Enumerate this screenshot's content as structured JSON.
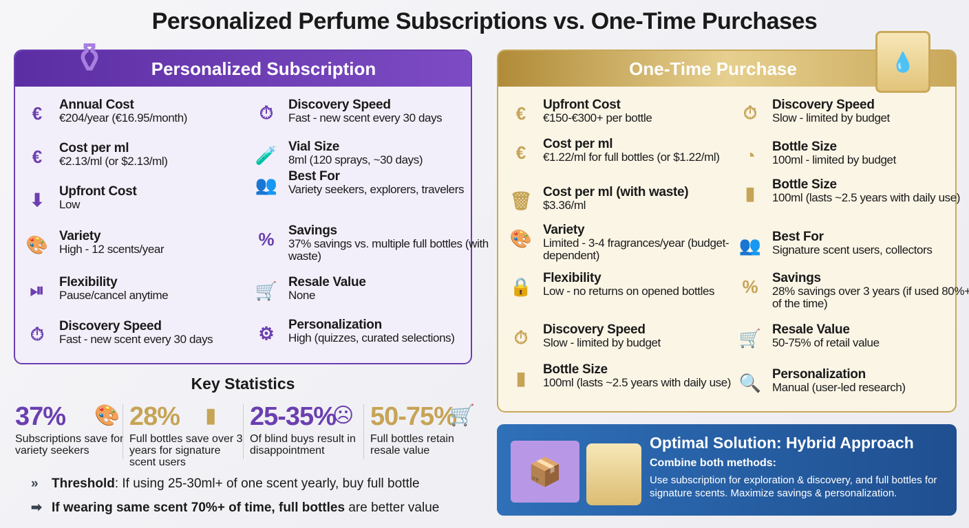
{
  "title": "Personalized Perfume Subscriptions vs. One-Time Purchases",
  "colors": {
    "purple": "#6b3fb0",
    "gold": "#c6a456",
    "blue": "#2f70b9"
  },
  "subscription": {
    "heading": "Personalized Subscription",
    "items": [
      {
        "title": "Annual Cost",
        "desc": "€204/year (€16.95/month)",
        "icon": "money-bag-icon"
      },
      {
        "title": "Cost per ml",
        "desc": "€2.13/ml (or $2.13/ml)",
        "icon": "drop-euro-icon"
      },
      {
        "title": "Upfront Cost",
        "desc": "Low",
        "icon": "down-arrow-euro-icon"
      },
      {
        "title": "Variety",
        "desc": "High - 12 scents/year",
        "icon": "palette-icon"
      },
      {
        "title": "Flexibility",
        "desc": "Pause/cancel anytime",
        "icon": "pause-play-icon"
      },
      {
        "title": "Discovery Speed",
        "desc": "Fast - new scent every 30 days",
        "icon": "stopwatch-calendar-icon"
      },
      {
        "title": "Discovery Speed",
        "desc": "Fast - new scent every 30 days",
        "icon": "stopwatch-calendar-icon"
      },
      {
        "title": "Vial Size",
        "desc": "8ml (120 sprays, ~30 days)",
        "icon": "vial-icon"
      },
      {
        "title": "Best For",
        "desc": "Variety seekers, explorers, travelers",
        "icon": "people-icon"
      },
      {
        "title": "Savings",
        "desc": "37% savings vs. multiple full bottles (with waste)",
        "icon": "percent-badge-icon"
      },
      {
        "title": "Resale Value",
        "desc": "None",
        "icon": "cart-blocked-icon"
      },
      {
        "title": "Personalization",
        "desc": "High (quizzes, curated selections)",
        "icon": "user-gear-icon"
      }
    ]
  },
  "onetime": {
    "heading": "One-Time Purchase",
    "items": [
      {
        "title": "Upfront Cost",
        "desc": "€150-€300+ per bottle",
        "icon": "money-bag-icon"
      },
      {
        "title": "Cost per ml",
        "desc": "€1.22/ml for full bottles (or $1.22/ml)",
        "icon": "drop-euro-icon"
      },
      {
        "title": "Cost per ml (with waste)",
        "desc": "$3.36/ml",
        "icon": "drop-trash-icon"
      },
      {
        "title": "Variety",
        "desc": "Limited - 3-4 fragrances/year (budget-dependent)",
        "icon": "palette-icon"
      },
      {
        "title": "Flexibility",
        "desc": "Low - no returns on opened bottles",
        "icon": "lock-icon"
      },
      {
        "title": "Discovery Speed",
        "desc": "Slow - limited by budget",
        "icon": "stopwatch-icon"
      },
      {
        "title": "Bottle Size",
        "desc": "100ml (lasts ~2.5 years with daily use)",
        "icon": "bottle-icon"
      },
      {
        "title": "Discovery Speed",
        "desc": "Slow - limited by budget",
        "icon": "stopwatch-icon"
      },
      {
        "title": "Bottle Size",
        "desc": "100ml - limited by budget",
        "icon": "timer-icon"
      },
      {
        "title": "Bottle Size",
        "desc": "100ml (lasts ~2.5 years with daily use)",
        "icon": "bottle-icon"
      },
      {
        "title": "Best For",
        "desc": "Signature scent users, collectors",
        "icon": "people-icon"
      },
      {
        "title": "Savings",
        "desc": "28% savings over 3 years (if used 80%+ of the time)",
        "icon": "percent-badge-icon"
      },
      {
        "title": "Resale Value",
        "desc": "50-75% of retail value",
        "icon": "cart-check-icon"
      },
      {
        "title": "Personalization",
        "desc": "Manual (user-led research)",
        "icon": "user-search-icon"
      }
    ]
  },
  "stats": {
    "heading": "Key Statistics",
    "items": [
      {
        "value": "37%",
        "label": "Subscriptions save for variety seekers",
        "icon": "palette-icon"
      },
      {
        "value": "28%",
        "label": "Full bottles save over 3 years for signature scent users",
        "icon": "bottle-icon"
      },
      {
        "value": "25-35%",
        "label": "Of blind buys result in disappointment",
        "icon": "sad-face-icon"
      },
      {
        "value": "50-75%",
        "label": "Full bottles retain resale value",
        "icon": "cart-dollar-icon"
      }
    ]
  },
  "notes": {
    "threshold_bold": "Threshold",
    "threshold_text": ": If using 25-30ml+ of one scent yearly, buy full bottle",
    "wearing_bold": "If wearing same scent 70%+ of time, full bottles",
    "wearing_text": " are better value"
  },
  "hybrid": {
    "title": "Optimal Solution: Hybrid Approach",
    "subtitle": "Combine both methods:",
    "text": "Use subscription for exploration & discovery, and full bottles for signature scents. Maximize savings & personalization."
  }
}
